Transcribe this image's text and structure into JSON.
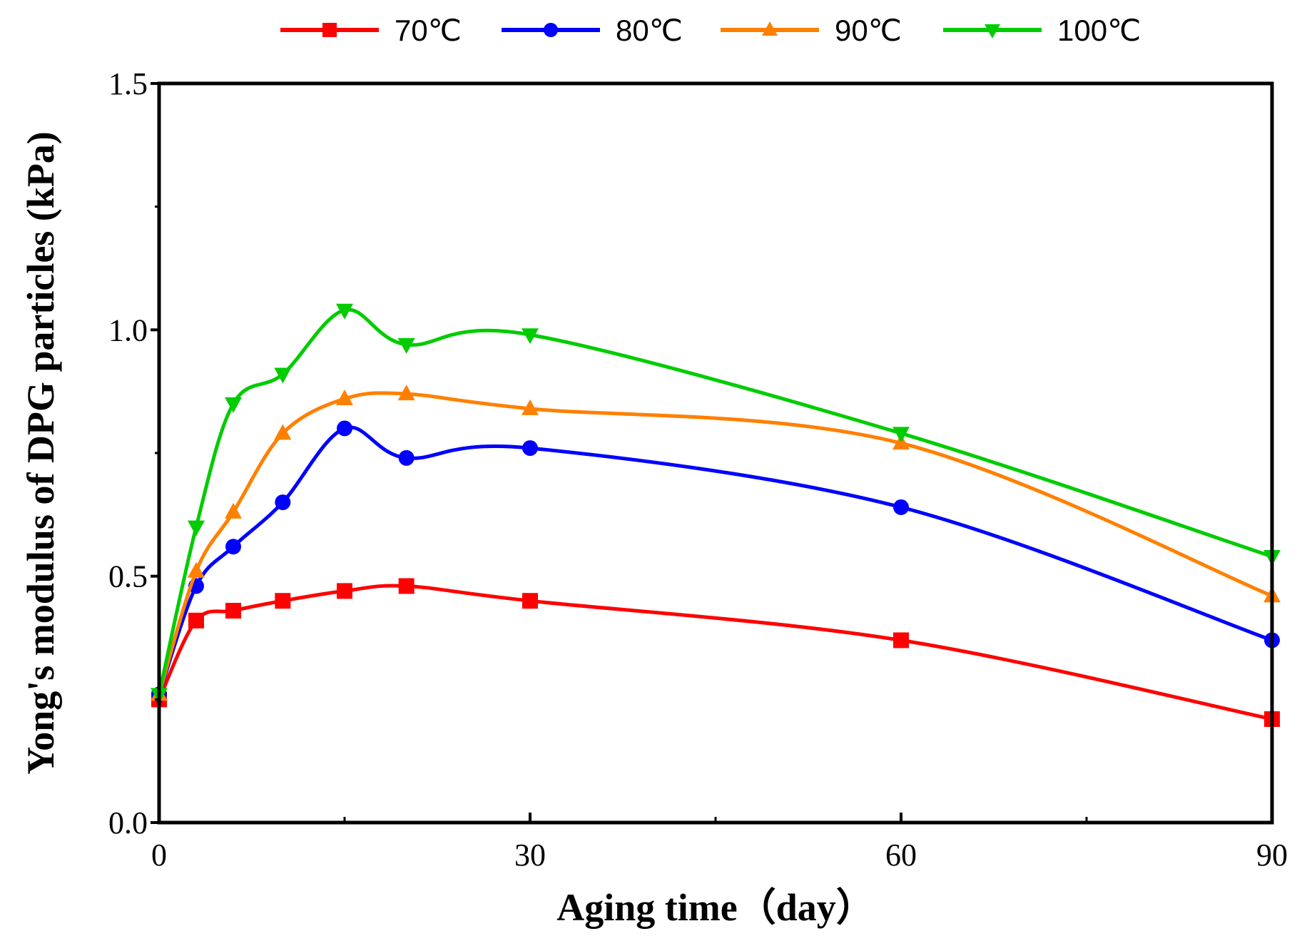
{
  "chart_data": {
    "type": "line",
    "title": "",
    "xlabel": "Aging time（day）",
    "ylabel": "Yong's modulus of DPG particles (kPa)",
    "xlim": [
      0,
      90
    ],
    "ylim": [
      0,
      1.5
    ],
    "xticks": [
      0,
      30,
      60,
      90
    ],
    "xtick_labels": [
      "0",
      "30",
      "60",
      "90"
    ],
    "yticks": [
      0,
      0.5,
      1.0,
      1.5
    ],
    "ytick_labels": [
      "0.0",
      "0.5",
      "1.0",
      "1.5"
    ],
    "grid": false,
    "legend_position": "top",
    "x": [
      0,
      3,
      6,
      10,
      15,
      20,
      30,
      60,
      90
    ],
    "series": [
      {
        "name": "70℃",
        "color": "#ff0000",
        "marker": "square",
        "values": [
          0.25,
          0.41,
          0.43,
          0.45,
          0.47,
          0.48,
          0.45,
          0.37,
          0.21
        ]
      },
      {
        "name": "80℃",
        "color": "#0000ff",
        "marker": "circle",
        "values": [
          0.26,
          0.48,
          0.56,
          0.65,
          0.8,
          0.74,
          0.76,
          0.64,
          0.37
        ]
      },
      {
        "name": "90℃",
        "color": "#ff8000",
        "marker": "triangle-up",
        "values": [
          0.26,
          0.51,
          0.63,
          0.79,
          0.86,
          0.87,
          0.84,
          0.77,
          0.46
        ]
      },
      {
        "name": "100℃",
        "color": "#00cc00",
        "marker": "triangle-down",
        "values": [
          0.26,
          0.6,
          0.85,
          0.91,
          1.04,
          0.97,
          0.99,
          0.79,
          0.54
        ]
      }
    ]
  }
}
